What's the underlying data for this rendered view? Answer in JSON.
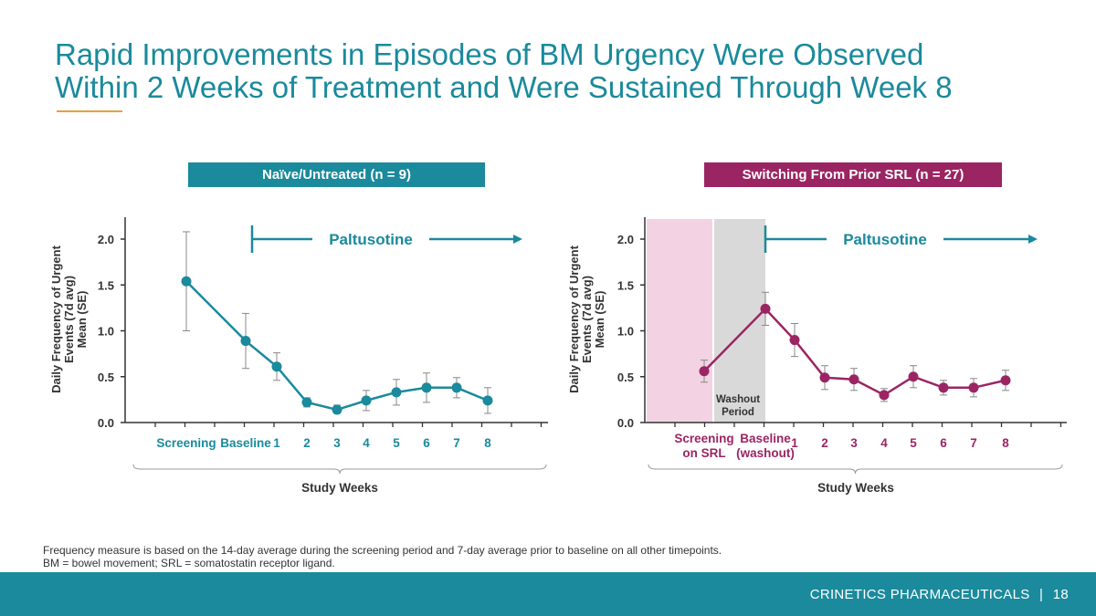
{
  "title": {
    "line1": "Rapid Improvements in Episodes of BM Urgency Were Observed",
    "line2": "Within 2 Weeks of Treatment and Were Sustained Through Week 8"
  },
  "colors": {
    "teal": "#1a8a9c",
    "maroon": "#9b2563",
    "screening_shade": "#f3d3e3",
    "washout_shade": "#d9d9d9",
    "title_rule": "#e2a23b",
    "footer_bar": "#1a8a9c"
  },
  "chart_data": [
    {
      "type": "line",
      "panel_label": "Naïve/Untreated (n = 9)",
      "ylabel_lines": [
        "Daily Frequency of Urgent",
        "Events (7d avg)",
        "Mean (SE)"
      ],
      "xlabel": "Study Weeks",
      "ylim": [
        0,
        2.0
      ],
      "yticks": [
        "0.0",
        "0.5",
        "1.0",
        "1.5",
        "2.0"
      ],
      "categories": [
        "Screening",
        "Baseline",
        "1",
        "2",
        "3",
        "4",
        "5",
        "6",
        "7",
        "8"
      ],
      "annotation": "Paltusotine",
      "series": [
        {
          "color": "#1a8a9c",
          "values": [
            1.54,
            0.89,
            0.61,
            0.22,
            0.14,
            0.24,
            0.33,
            0.38,
            0.38,
            0.24
          ],
          "upper": [
            2.08,
            1.19,
            0.76,
            0.27,
            0.19,
            0.35,
            0.47,
            0.54,
            0.49,
            0.38
          ],
          "lower": [
            1.0,
            0.59,
            0.46,
            0.17,
            0.1,
            0.13,
            0.19,
            0.22,
            0.27,
            0.1
          ]
        }
      ]
    },
    {
      "type": "line",
      "panel_label": "Switching From Prior SRL (n = 27)",
      "ylabel_lines": [
        "Daily Frequency of Urgent",
        "Events (7d avg)",
        "Mean (SE)"
      ],
      "xlabel": "Study Weeks",
      "ylim": [
        0,
        2.0
      ],
      "yticks": [
        "0.0",
        "0.5",
        "1.0",
        "1.5",
        "2.0"
      ],
      "categories": [
        "Screening\non SRL",
        "Baseline\n(washout)",
        "1",
        "2",
        "3",
        "4",
        "5",
        "6",
        "7",
        "8"
      ],
      "shaded_regions": [
        "screening",
        "Washout\nPeriod"
      ],
      "annotation": "Paltusotine",
      "series": [
        {
          "color": "#9b2563",
          "values": [
            0.56,
            1.24,
            0.9,
            0.49,
            0.47,
            0.3,
            0.5,
            0.38,
            0.38,
            0.46
          ],
          "upper": [
            0.68,
            1.42,
            1.08,
            0.62,
            0.59,
            0.37,
            0.62,
            0.46,
            0.48,
            0.57
          ],
          "lower": [
            0.44,
            1.06,
            0.72,
            0.36,
            0.35,
            0.23,
            0.38,
            0.3,
            0.28,
            0.35
          ]
        }
      ]
    }
  ],
  "footnote": {
    "line1": "Frequency measure is based on the 14-day average during the screening period and 7-day average prior to baseline on all other timepoints.",
    "line2": "BM = bowel movement; SRL = somatostatin receptor ligand."
  },
  "footer": {
    "company": "CRINETICS PHARMACEUTICALS",
    "separator": "|",
    "page": "18"
  }
}
